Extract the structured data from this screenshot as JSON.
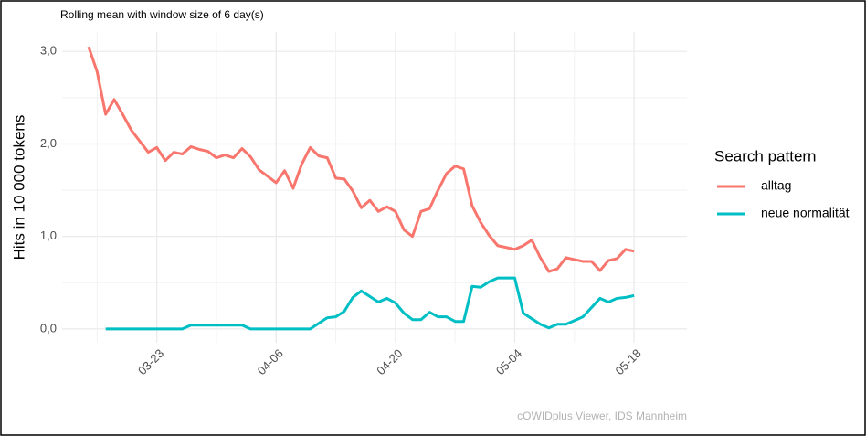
{
  "chart_data": {
    "type": "line",
    "subtitle": "Rolling mean with window size of 6 day(s)",
    "y_label": "Hits in 10 000 tokens",
    "legend_title": "Search pattern",
    "caption": "cOWIDplus Viewer, IDS Mannheim",
    "categories": [
      "03-15",
      "03-16",
      "03-17",
      "03-18",
      "03-19",
      "03-20",
      "03-21",
      "03-22",
      "03-23",
      "03-24",
      "03-25",
      "03-26",
      "03-27",
      "03-28",
      "03-29",
      "03-30",
      "03-31",
      "04-01",
      "04-02",
      "04-03",
      "04-04",
      "04-05",
      "04-06",
      "04-07",
      "04-08",
      "04-09",
      "04-10",
      "04-11",
      "04-12",
      "04-13",
      "04-14",
      "04-15",
      "04-16",
      "04-17",
      "04-18",
      "04-19",
      "04-20",
      "04-21",
      "04-22",
      "04-23",
      "04-24",
      "04-25",
      "04-26",
      "04-27",
      "04-28",
      "04-29",
      "04-30",
      "05-01",
      "05-02",
      "05-03",
      "05-04",
      "05-05",
      "05-06",
      "05-07",
      "05-08",
      "05-09",
      "05-10",
      "05-11",
      "05-12",
      "05-13",
      "05-14",
      "05-15",
      "05-16",
      "05-17",
      "05-18"
    ],
    "xticks": [
      "03-23",
      "04-06",
      "04-20",
      "05-04",
      "05-18"
    ],
    "series": [
      {
        "name": "alltag",
        "color": "#F8766D",
        "values": [
          3.05,
          2.78,
          2.32,
          2.48,
          2.32,
          2.15,
          2.03,
          1.91,
          1.96,
          1.82,
          1.91,
          1.89,
          1.97,
          1.94,
          1.92,
          1.85,
          1.88,
          1.85,
          1.95,
          1.86,
          1.72,
          1.65,
          1.58,
          1.71,
          1.52,
          1.78,
          1.96,
          1.87,
          1.85,
          1.63,
          1.62,
          1.49,
          1.31,
          1.39,
          1.27,
          1.32,
          1.27,
          1.07,
          1.0,
          1.27,
          1.3,
          1.5,
          1.68,
          1.76,
          1.73,
          1.33,
          1.15,
          1.01,
          0.9,
          0.88,
          0.86,
          0.9,
          0.96,
          0.77,
          0.62,
          0.65,
          0.77,
          0.75,
          0.73,
          0.73,
          0.63,
          0.74,
          0.76,
          0.86,
          0.84
        ]
      },
      {
        "name": "neue normalität",
        "color": "#00BFC4",
        "values": [
          null,
          null,
          0,
          0,
          0,
          0,
          0,
          0,
          0,
          0,
          0,
          0,
          0.04,
          0.04,
          0.04,
          0.04,
          0.04,
          0.04,
          0.04,
          0,
          0,
          0,
          0,
          0,
          0,
          0,
          0,
          0.06,
          0.12,
          0.13,
          0.19,
          0.34,
          0.41,
          0.35,
          0.29,
          0.33,
          0.28,
          0.17,
          0.1,
          0.1,
          0.18,
          0.13,
          0.13,
          0.08,
          0.08,
          0.46,
          0.45,
          0.51,
          0.55,
          0.55,
          0.55,
          0.17,
          0.11,
          0.05,
          0.01,
          0.05,
          0.05,
          0.09,
          0.13,
          0.23,
          0.33,
          0.29,
          0.33,
          0.34,
          0.36
        ]
      }
    ],
    "ylim": [
      -0.15,
      3.21
    ],
    "yticks": [
      {
        "value": 0,
        "label": "0,0"
      },
      {
        "value": 1,
        "label": "1,0"
      },
      {
        "value": 2,
        "label": "2,0"
      },
      {
        "value": 3,
        "label": "3,0"
      }
    ],
    "grid": true
  }
}
